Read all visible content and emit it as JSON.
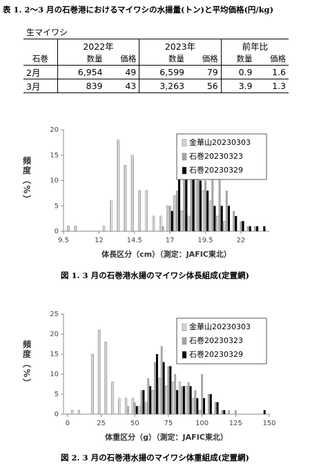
{
  "table_title": "表 1. 2～3 月の石巻港におけるマイワシの水揚量(トン)と平均価格(円/kg)",
  "table": {
    "caption": "生マイワシ",
    "row_header_label": "石巻",
    "header_groups": [
      "2022年",
      "2023年",
      "前年比"
    ],
    "subheaders": [
      "数量",
      "価格",
      "数量",
      "価格",
      "数量",
      "価格"
    ],
    "rows": [
      [
        "2月",
        "6,954",
        "49",
        "6,599",
        "79",
        "0.9",
        "1.6"
      ],
      [
        "3月",
        "839",
        "43",
        "3,263",
        "56",
        "3.9",
        "1.3"
      ]
    ]
  },
  "chart_data": [
    {
      "type": "bar",
      "caption": "図 1.  3 月の石巻港水揚のマイワシ体長組成(定置網)",
      "xlabel": "体長区分（cm）（測定：JAFIC東北）",
      "ylabel": "頻度（%）",
      "x": [
        10,
        10.5,
        11,
        11.5,
        12,
        12.5,
        13,
        13.5,
        14,
        14.5,
        15,
        15.5,
        16,
        16.5,
        17,
        17.5,
        18,
        18.5,
        19,
        19.5,
        20,
        20.5,
        21,
        21.5,
        22,
        22.5,
        23,
        23.5
      ],
      "series": [
        {
          "name": "金華山20230303",
          "color": "#ffffff",
          "hatch": true,
          "values": [
            1,
            1,
            0,
            0,
            0,
            1,
            6,
            18,
            13,
            15,
            8,
            8,
            3,
            3,
            5,
            7,
            4,
            3,
            12,
            8,
            6,
            3,
            2,
            0,
            0,
            0,
            0,
            0
          ]
        },
        {
          "name": "石巻20230323",
          "color": "#a6a6a6",
          "hatch": false,
          "values": [
            0,
            0,
            0,
            0,
            0,
            0,
            0,
            0,
            0,
            0,
            0,
            0,
            0,
            1,
            5,
            8,
            11,
            15,
            12,
            10,
            14,
            12,
            8,
            4,
            2,
            1,
            1,
            0
          ]
        },
        {
          "name": "石巻20230329",
          "color": "#000000",
          "hatch": false,
          "values": [
            0,
            0,
            0,
            0,
            0,
            0,
            0,
            0,
            0,
            0,
            0,
            0,
            0,
            0,
            4,
            12,
            13,
            16,
            10,
            8,
            5,
            5,
            5,
            3,
            2,
            1,
            1,
            1
          ]
        }
      ],
      "xlim": [
        9.5,
        24
      ],
      "xticks": [
        9.5,
        12,
        14.5,
        17,
        19.5,
        22
      ],
      "ylim": [
        0,
        20
      ],
      "yticks": [
        0,
        5,
        10,
        15,
        20
      ],
      "legend": "upper right"
    },
    {
      "type": "bar",
      "caption": "図 2.  3 月の石巻港水揚のマイワシ体重組成(定置網)",
      "xlabel": "体重区分（g）（測定：JAFIC東北）",
      "ylabel": "頻度（%）",
      "x": [
        5,
        10,
        15,
        20,
        25,
        30,
        35,
        40,
        45,
        50,
        55,
        60,
        65,
        70,
        75,
        80,
        85,
        90,
        95,
        100,
        105,
        110,
        115,
        120,
        125,
        130,
        135,
        140,
        145
      ],
      "series": [
        {
          "name": "金華山20230303",
          "color": "#ffffff",
          "hatch": true,
          "values": [
            1,
            1,
            0,
            15,
            21,
            18,
            8,
            4,
            4,
            4,
            2,
            3,
            6,
            9,
            7,
            8,
            8,
            7,
            4,
            1,
            0,
            0,
            0,
            0,
            0,
            0,
            0,
            0,
            0
          ]
        },
        {
          "name": "石巻20230323",
          "color": "#a6a6a6",
          "hatch": false,
          "values": [
            0,
            0,
            0,
            0,
            0,
            0,
            0,
            0,
            2,
            3,
            6,
            9,
            13,
            17,
            12,
            10,
            7,
            8,
            6,
            10,
            5,
            3,
            1,
            1,
            1,
            0,
            0,
            0,
            0
          ]
        },
        {
          "name": "石巻20230329",
          "color": "#000000",
          "hatch": false,
          "values": [
            0,
            0,
            0,
            0,
            0,
            0,
            0,
            0,
            0,
            2,
            6,
            7,
            15,
            13,
            12,
            6,
            7,
            7,
            4,
            4,
            5,
            3,
            1,
            0,
            0,
            0,
            0,
            0,
            1
          ]
        }
      ],
      "xlim": [
        -3,
        150
      ],
      "xticks": [
        0,
        25,
        50,
        75,
        100,
        125,
        150
      ],
      "ylim": [
        0,
        25
      ],
      "yticks": [
        0,
        5,
        10,
        15,
        20,
        25
      ],
      "legend": "upper right"
    }
  ]
}
